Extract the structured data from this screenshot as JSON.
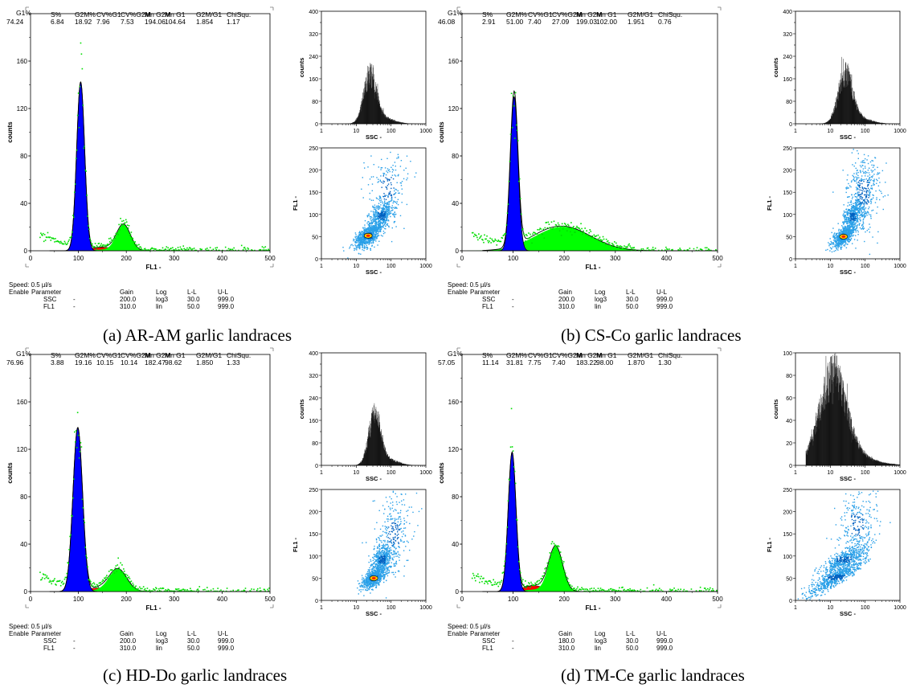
{
  "figure": {
    "speed_label": "Speed: 0.5 µl/s",
    "enable_label": "Enable",
    "param_headers": [
      "Parameter",
      "",
      "Gain",
      "Log",
      "L-L",
      "U-L"
    ],
    "stat_headers": [
      "G1%",
      "S%",
      "G2M%",
      "CV%G1",
      "CV%G2M",
      "Mn G2M",
      "Mn G1",
      "G2M/G1",
      "ChiSqu."
    ]
  },
  "panels": [
    {
      "caption": "(a) AR-AM garlic landraces",
      "stat_values": [
        "74.24",
        "6.84",
        "18.92",
        "7.96",
        "7.53",
        "194.06",
        "104.64",
        "1.854",
        "1.17"
      ],
      "params": [
        [
          "SSC",
          "-",
          "200.0",
          "log3",
          "30.0",
          "999.0"
        ],
        [
          "FL1",
          "-",
          "310.0",
          "lin",
          "50.0",
          "999.0"
        ]
      ]
    },
    {
      "caption": "(b) CS-Co garlic landraces",
      "stat_values": [
        "46.08",
        "2.91",
        "51.00",
        "7.40",
        "27.09",
        "199.03",
        "102.00",
        "1.951",
        "0.76"
      ],
      "params": [
        [
          "SSC",
          "-",
          "200.0",
          "log3",
          "30.0",
          "999.0"
        ],
        [
          "FL1",
          "-",
          "310.0",
          "lin",
          "50.0",
          "999.0"
        ]
      ]
    },
    {
      "caption": "(c) HD-Do garlic landraces",
      "stat_values": [
        "76.96",
        "3.88",
        "19.16",
        "10.15",
        "10.14",
        "182.47",
        "98.62",
        "1.850",
        "1.33"
      ],
      "params": [
        [
          "SSC",
          "-",
          "200.0",
          "log3",
          "30.0",
          "999.0"
        ],
        [
          "FL1",
          "-",
          "310.0",
          "lin",
          "50.0",
          "999.0"
        ]
      ]
    },
    {
      "caption": "(d) TM-Ce garlic landraces",
      "stat_values": [
        "57.05",
        "11.14",
        "31.81",
        "7.75",
        "7.40",
        "183.22",
        "98.00",
        "1.870",
        "1.30"
      ],
      "params": [
        [
          "SSC",
          "-",
          "180.0",
          "log3",
          "30.0",
          "999.0"
        ],
        [
          "FL1",
          "-",
          "310.0",
          "lin",
          "50.0",
          "999.0"
        ]
      ]
    }
  ],
  "chart_data": [
    {
      "type": "area",
      "panel": "a",
      "chart": "FL1 DNA histogram",
      "xlabel": "FL1 -",
      "ylabel": "counts",
      "xlim": [
        0,
        500
      ],
      "ylim": [
        0,
        200
      ],
      "xticks": [
        0,
        100,
        200,
        300,
        400,
        500
      ],
      "yticks": [
        0,
        40,
        80,
        120,
        160,
        200
      ],
      "series": [
        {
          "component": "G1",
          "color": "#0000ff",
          "mean": 104.64,
          "sd": 8.3,
          "peak": 142
        },
        {
          "component": "G2M",
          "color": "#00ff00",
          "mean": 194.06,
          "sd": 14.6,
          "peak": 22
        },
        {
          "component": "S",
          "color": "#ff0000",
          "mean": 150,
          "sd": 24,
          "peak": 3
        }
      ]
    },
    {
      "type": "area",
      "panel": "b",
      "chart": "FL1 DNA histogram",
      "xlabel": "FL1 -",
      "ylabel": "counts",
      "xlim": [
        0,
        500
      ],
      "ylim": [
        0,
        200
      ],
      "xticks": [
        0,
        100,
        200,
        300,
        400,
        500
      ],
      "yticks": [
        0,
        40,
        80,
        120,
        160,
        200
      ],
      "series": [
        {
          "component": "G1",
          "color": "#0000ff",
          "mean": 102,
          "sd": 7.5,
          "peak": 130
        },
        {
          "component": "G2M",
          "color": "#00ff00",
          "mean": 199.03,
          "sd": 54,
          "peak": 20
        },
        {
          "component": "S",
          "color": "#ff0000",
          "mean": 150,
          "sd": 35,
          "peak": 2
        }
      ]
    },
    {
      "type": "area",
      "panel": "c",
      "chart": "FL1 DNA histogram",
      "xlabel": "FL1 -",
      "ylabel": "counts",
      "xlim": [
        0,
        500
      ],
      "ylim": [
        0,
        200
      ],
      "xticks": [
        0,
        100,
        200,
        300,
        400,
        500
      ],
      "yticks": [
        0,
        40,
        80,
        120,
        160,
        200
      ],
      "series": [
        {
          "component": "G1",
          "color": "#0000ff",
          "mean": 98.62,
          "sd": 10,
          "peak": 138
        },
        {
          "component": "G2M",
          "color": "#00ff00",
          "mean": 182.47,
          "sd": 18.5,
          "peak": 19
        },
        {
          "component": "S",
          "color": "#ff0000",
          "mean": 140,
          "sd": 22,
          "peak": 3
        }
      ]
    },
    {
      "type": "area",
      "panel": "d",
      "chart": "FL1 DNA histogram",
      "xlabel": "FL1 -",
      "ylabel": "counts",
      "xlim": [
        0,
        500
      ],
      "ylim": [
        0,
        200
      ],
      "xticks": [
        0,
        100,
        200,
        300,
        400,
        500
      ],
      "yticks": [
        0,
        40,
        80,
        120,
        160,
        200
      ],
      "series": [
        {
          "component": "G1",
          "color": "#0000ff",
          "mean": 98,
          "sd": 7.6,
          "peak": 117
        },
        {
          "component": "G2M",
          "color": "#00ff00",
          "mean": 183.22,
          "sd": 13.6,
          "peak": 38
        },
        {
          "component": "S",
          "color": "#ff0000",
          "mean": 140,
          "sd": 22,
          "peak": 5
        }
      ]
    },
    {
      "type": "bar",
      "panel": "a",
      "chart": "SSC histogram",
      "xlabel": "SSC -",
      "ylabel": "counts",
      "x_scale": "log",
      "xlim": [
        1,
        1000
      ],
      "ylim": [
        0,
        400
      ],
      "xticks": [
        1,
        10,
        100,
        1000
      ],
      "yticks": [
        0,
        40,
        80,
        120,
        160,
        200,
        240,
        280,
        320,
        360,
        400
      ],
      "yticklabels": [
        "0",
        "",
        "80",
        "",
        "160",
        "",
        "240",
        "",
        "320",
        "",
        "400"
      ],
      "peak_x": 25,
      "peak_y": 210,
      "width_decades": 0.18
    },
    {
      "type": "bar",
      "panel": "b",
      "chart": "SSC histogram",
      "xlabel": "SSC -",
      "ylabel": "counts",
      "x_scale": "log",
      "xlim": [
        1,
        1000
      ],
      "ylim": [
        0,
        400
      ],
      "xticks": [
        1,
        10,
        100,
        1000
      ],
      "yticks": [
        0,
        40,
        80,
        120,
        160,
        200,
        240,
        280,
        320,
        360,
        400
      ],
      "yticklabels": [
        "0",
        "",
        "80",
        "",
        "160",
        "",
        "240",
        "",
        "320",
        "",
        "400"
      ],
      "peak_x": 27,
      "peak_y": 215,
      "width_decades": 0.2
    },
    {
      "type": "bar",
      "panel": "c",
      "chart": "SSC histogram",
      "xlabel": "SSC -",
      "ylabel": "counts",
      "x_scale": "log",
      "xlim": [
        1,
        1000
      ],
      "ylim": [
        0,
        400
      ],
      "xticks": [
        1,
        10,
        100,
        1000
      ],
      "yticks": [
        0,
        40,
        80,
        120,
        160,
        200,
        240,
        280,
        320,
        360,
        400
      ],
      "yticklabels": [
        "0",
        "",
        "80",
        "",
        "160",
        "",
        "240",
        "",
        "320",
        "",
        "400"
      ],
      "peak_x": 34,
      "peak_y": 220,
      "width_decades": 0.17
    },
    {
      "type": "bar",
      "panel": "d",
      "chart": "SSC histogram",
      "xlabel": "SSC -",
      "ylabel": "counts",
      "x_scale": "log",
      "xlim": [
        1,
        1000
      ],
      "ylim": [
        0,
        100
      ],
      "xticks": [
        1,
        10,
        100,
        1000
      ],
      "yticks": [
        0,
        20,
        40,
        60,
        80,
        100
      ],
      "yticklabels": [
        "0",
        "20",
        "40",
        "60",
        "80",
        "100"
      ],
      "peak_x": 12,
      "peak_y": 94,
      "width_decades": 0.38
    },
    {
      "type": "scatter",
      "panel": "a",
      "chart": "SSC vs FL1 density plot",
      "xlabel": "SSC -",
      "ylabel": "FL1 -",
      "x_scale": "log",
      "xlim": [
        1,
        1000
      ],
      "ylim": [
        0,
        250
      ],
      "xticks": [
        1,
        10,
        100,
        1000
      ],
      "yticks": [
        0,
        50,
        100,
        150,
        200,
        250
      ],
      "clusters": [
        {
          "x": 22,
          "y": 52,
          "sx": 0.2,
          "sy": 11,
          "share": 0.55
        },
        {
          "x": 55,
          "y": 98,
          "sx": 0.18,
          "sy": 16,
          "share": 0.3
        },
        {
          "x": 80,
          "y": 160,
          "sx": 0.3,
          "sy": 45,
          "share": 0.15
        }
      ],
      "hotspot": [
        22,
        52
      ]
    },
    {
      "type": "scatter",
      "panel": "b",
      "chart": "SSC vs FL1 density plot",
      "xlabel": "SSC -",
      "ylabel": "FL1 -",
      "x_scale": "log",
      "xlim": [
        1,
        1000
      ],
      "ylim": [
        0,
        250
      ],
      "xticks": [
        1,
        10,
        100,
        1000
      ],
      "yticks": [
        0,
        50,
        100,
        150,
        200,
        250
      ],
      "clusters": [
        {
          "x": 24,
          "y": 50,
          "sx": 0.16,
          "sy": 10,
          "share": 0.4
        },
        {
          "x": 45,
          "y": 95,
          "sx": 0.15,
          "sy": 15,
          "share": 0.3
        },
        {
          "x": 90,
          "y": 150,
          "sx": 0.25,
          "sy": 45,
          "share": 0.3
        }
      ],
      "hotspot": [
        24,
        50
      ]
    },
    {
      "type": "scatter",
      "panel": "c",
      "chart": "SSC vs FL1 density plot",
      "xlabel": "SSC -",
      "ylabel": "FL1 -",
      "x_scale": "log",
      "xlim": [
        1,
        1000
      ],
      "ylim": [
        0,
        250
      ],
      "xticks": [
        1,
        10,
        100,
        1000
      ],
      "yticks": [
        0,
        50,
        100,
        150,
        200,
        250
      ],
      "clusters": [
        {
          "x": 32,
          "y": 50,
          "sx": 0.18,
          "sy": 10,
          "share": 0.5
        },
        {
          "x": 55,
          "y": 92,
          "sx": 0.16,
          "sy": 15,
          "share": 0.3
        },
        {
          "x": 120,
          "y": 150,
          "sx": 0.28,
          "sy": 45,
          "share": 0.2
        }
      ],
      "hotspot": [
        32,
        50
      ]
    },
    {
      "type": "scatter",
      "panel": "d",
      "chart": "SSC vs FL1 density plot",
      "xlabel": "SSC -",
      "ylabel": "FL1 -",
      "x_scale": "log",
      "xlim": [
        1,
        1000
      ],
      "ylim": [
        0,
        250
      ],
      "xticks": [
        1,
        10,
        100,
        1000
      ],
      "yticks": [
        0,
        50,
        100,
        150,
        200,
        250
      ],
      "clusters": [
        {
          "x": 15,
          "y": 52,
          "sx": 0.4,
          "sy": 9,
          "share": 0.45
        },
        {
          "x": 25,
          "y": 92,
          "sx": 0.35,
          "sy": 10,
          "share": 0.35
        },
        {
          "x": 60,
          "y": 170,
          "sx": 0.3,
          "sy": 40,
          "share": 0.2
        }
      ],
      "hotspot": null
    }
  ]
}
